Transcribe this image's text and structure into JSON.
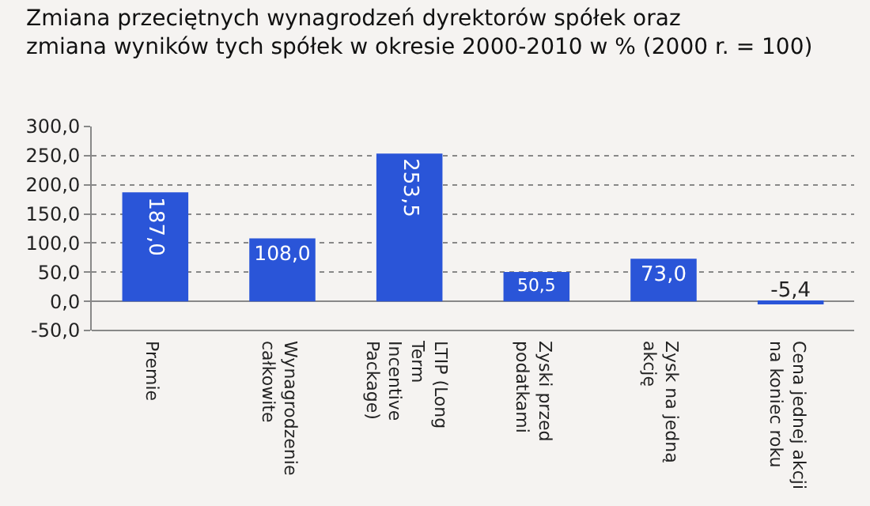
{
  "chart_data": {
    "type": "bar",
    "title": "Zmiana przeciętnych wynagrodzeń dyrektorów spółek oraz\nzmiana wyników tych spółek w okresie 2000-2010 w % (2000 r. = 100)",
    "categories": [
      "Premie",
      "Wynagrodzenie\ncałkowite",
      "LTIP (Long\nTerm\nIncentive\nPackage)",
      "Zyski przed\npodatkami",
      "Zysk na jedną\nakcję",
      "Cena jednej akcji\nna koniec roku"
    ],
    "values": [
      187.0,
      108.0,
      253.5,
      50.5,
      73.0,
      -5.4
    ],
    "value_labels": [
      "187,0",
      "108,0",
      "253,5",
      "50,5",
      "73,0",
      "-5,4"
    ],
    "color": "#2a55d8",
    "ylim": [
      -50,
      300
    ],
    "yticks": [
      {
        "value": -50,
        "label": "-50,0"
      },
      {
        "value": 0,
        "label": "0,0"
      },
      {
        "value": 50,
        "label": "50,0"
      },
      {
        "value": 100,
        "label": "100,0"
      },
      {
        "value": 150,
        "label": "150,0"
      },
      {
        "value": 200,
        "label": "200,0"
      },
      {
        "value": 250,
        "label": "250,0"
      },
      {
        "value": 300,
        "label": "300,0"
      }
    ],
    "grid": "y"
  }
}
